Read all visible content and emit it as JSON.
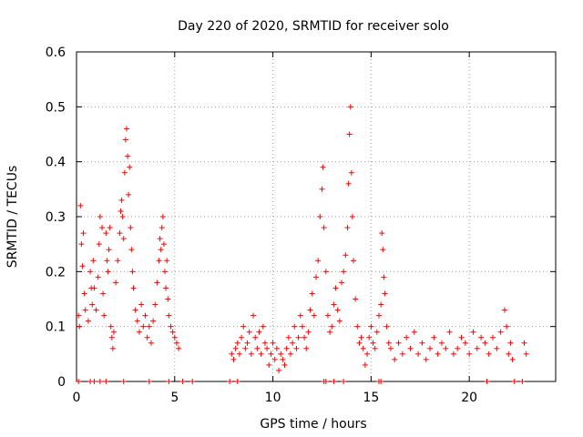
{
  "chart_data": {
    "type": "scatter",
    "title": "Day 220 of 2020, SRMTID for receiver solo",
    "xlabel": "GPS time / hours",
    "ylabel": "SRMTID / TECUs",
    "xlim": [
      0,
      24.4
    ],
    "ylim": [
      0,
      0.6
    ],
    "xticks": [
      0,
      5,
      10,
      15,
      20
    ],
    "xtick_labels": [
      "0",
      "5",
      "10",
      "15",
      "20"
    ],
    "yticks": [
      0,
      0.1,
      0.2,
      0.3,
      0.4,
      0.5,
      0.6
    ],
    "ytick_labels": [
      "0",
      "0.1",
      "0.2",
      "0.3",
      "0.4",
      "0.5",
      "0.6"
    ],
    "grid": true,
    "marker": "+",
    "color": "#ff0000",
    "series": [
      {
        "name": "SRMTID",
        "points": [
          [
            0.1,
            0.12
          ],
          [
            0.15,
            0.1
          ],
          [
            0.2,
            0.32
          ],
          [
            0.25,
            0.25
          ],
          [
            0.3,
            0.21
          ],
          [
            0.35,
            0.27
          ],
          [
            0.4,
            0.16
          ],
          [
            0.45,
            0.13
          ],
          [
            0.6,
            0.11
          ],
          [
            0.7,
            0.2
          ],
          [
            0.75,
            0.17
          ],
          [
            0.8,
            0.14
          ],
          [
            0.85,
            0.22
          ],
          [
            0.9,
            0.17
          ],
          [
            1.0,
            0.13
          ],
          [
            1.1,
            0.19
          ],
          [
            1.15,
            0.25
          ],
          [
            1.2,
            0.3
          ],
          [
            1.3,
            0.28
          ],
          [
            1.35,
            0.16
          ],
          [
            1.4,
            0.12
          ],
          [
            1.5,
            0.27
          ],
          [
            1.55,
            0.22
          ],
          [
            1.6,
            0.2
          ],
          [
            1.65,
            0.24
          ],
          [
            1.7,
            0.28
          ],
          [
            1.75,
            0.1
          ],
          [
            1.8,
            0.08
          ],
          [
            1.85,
            0.06
          ],
          [
            1.9,
            0.09
          ],
          [
            2.0,
            0.18
          ],
          [
            2.1,
            0.22
          ],
          [
            2.2,
            0.27
          ],
          [
            2.25,
            0.31
          ],
          [
            2.3,
            0.33
          ],
          [
            2.35,
            0.3
          ],
          [
            2.4,
            0.26
          ],
          [
            2.45,
            0.38
          ],
          [
            2.5,
            0.44
          ],
          [
            2.55,
            0.46
          ],
          [
            2.6,
            0.41
          ],
          [
            2.65,
            0.34
          ],
          [
            2.7,
            0.39
          ],
          [
            2.75,
            0.28
          ],
          [
            2.8,
            0.24
          ],
          [
            2.85,
            0.2
          ],
          [
            2.9,
            0.17
          ],
          [
            3.0,
            0.13
          ],
          [
            3.1,
            0.11
          ],
          [
            3.2,
            0.09
          ],
          [
            3.3,
            0.14
          ],
          [
            3.4,
            0.1
          ],
          [
            3.5,
            0.12
          ],
          [
            3.6,
            0.08
          ],
          [
            3.7,
            0.1
          ],
          [
            3.8,
            0.07
          ],
          [
            3.9,
            0.11
          ],
          [
            4.0,
            0.14
          ],
          [
            4.1,
            0.18
          ],
          [
            4.2,
            0.22
          ],
          [
            4.25,
            0.26
          ],
          [
            4.3,
            0.24
          ],
          [
            4.35,
            0.28
          ],
          [
            4.4,
            0.3
          ],
          [
            4.45,
            0.25
          ],
          [
            4.5,
            0.2
          ],
          [
            4.55,
            0.17
          ],
          [
            4.6,
            0.22
          ],
          [
            4.65,
            0.15
          ],
          [
            4.7,
            0.12
          ],
          [
            4.8,
            0.1
          ],
          [
            4.9,
            0.09
          ],
          [
            5.0,
            0.08
          ],
          [
            5.1,
            0.07
          ],
          [
            5.2,
            0.06
          ],
          [
            7.9,
            0.05
          ],
          [
            8.0,
            0.04
          ],
          [
            8.1,
            0.06
          ],
          [
            8.2,
            0.07
          ],
          [
            8.3,
            0.05
          ],
          [
            8.4,
            0.08
          ],
          [
            8.5,
            0.1
          ],
          [
            8.6,
            0.06
          ],
          [
            8.7,
            0.07
          ],
          [
            8.8,
            0.09
          ],
          [
            8.9,
            0.05
          ],
          [
            9.0,
            0.12
          ],
          [
            9.1,
            0.08
          ],
          [
            9.2,
            0.06
          ],
          [
            9.3,
            0.09
          ],
          [
            9.4,
            0.05
          ],
          [
            9.5,
            0.1
          ],
          [
            9.6,
            0.07
          ],
          [
            9.7,
            0.06
          ],
          [
            9.8,
            0.03
          ],
          [
            9.9,
            0.05
          ],
          [
            10.0,
            0.07
          ],
          [
            10.1,
            0.04
          ],
          [
            10.2,
            0.06
          ],
          [
            10.3,
            0.02
          ],
          [
            10.4,
            0.05
          ],
          [
            10.5,
            0.04
          ],
          [
            10.6,
            0.03
          ],
          [
            10.7,
            0.06
          ],
          [
            10.8,
            0.08
          ],
          [
            10.9,
            0.05
          ],
          [
            11.0,
            0.07
          ],
          [
            11.1,
            0.1
          ],
          [
            11.2,
            0.06
          ],
          [
            11.3,
            0.08
          ],
          [
            11.4,
            0.12
          ],
          [
            11.5,
            0.1
          ],
          [
            11.6,
            0.08
          ],
          [
            11.7,
            0.06
          ],
          [
            11.8,
            0.09
          ],
          [
            11.9,
            0.13
          ],
          [
            12.0,
            0.16
          ],
          [
            12.1,
            0.12
          ],
          [
            12.2,
            0.19
          ],
          [
            12.3,
            0.22
          ],
          [
            12.4,
            0.3
          ],
          [
            12.5,
            0.35
          ],
          [
            12.55,
            0.39
          ],
          [
            12.6,
            0.28
          ],
          [
            12.7,
            0.2
          ],
          [
            12.8,
            0.12
          ],
          [
            12.9,
            0.09
          ],
          [
            13.0,
            0.1
          ],
          [
            13.1,
            0.14
          ],
          [
            13.2,
            0.17
          ],
          [
            13.3,
            0.13
          ],
          [
            13.4,
            0.11
          ],
          [
            13.5,
            0.18
          ],
          [
            13.6,
            0.2
          ],
          [
            13.7,
            0.23
          ],
          [
            13.8,
            0.28
          ],
          [
            13.85,
            0.36
          ],
          [
            13.9,
            0.45
          ],
          [
            13.95,
            0.5
          ],
          [
            14.0,
            0.38
          ],
          [
            14.05,
            0.3
          ],
          [
            14.1,
            0.22
          ],
          [
            14.2,
            0.15
          ],
          [
            14.3,
            0.1
          ],
          [
            14.4,
            0.07
          ],
          [
            14.5,
            0.08
          ],
          [
            14.6,
            0.06
          ],
          [
            14.7,
            0.03
          ],
          [
            14.8,
            0.05
          ],
          [
            14.9,
            0.08
          ],
          [
            15.0,
            0.1
          ],
          [
            15.1,
            0.07
          ],
          [
            15.2,
            0.06
          ],
          [
            15.3,
            0.09
          ],
          [
            15.4,
            0.12
          ],
          [
            15.5,
            0.14
          ],
          [
            15.55,
            0.27
          ],
          [
            15.6,
            0.24
          ],
          [
            15.65,
            0.19
          ],
          [
            15.7,
            0.16
          ],
          [
            15.8,
            0.1
          ],
          [
            15.9,
            0.07
          ],
          [
            16.0,
            0.06
          ],
          [
            16.2,
            0.04
          ],
          [
            16.4,
            0.07
          ],
          [
            16.6,
            0.05
          ],
          [
            16.8,
            0.08
          ],
          [
            17.0,
            0.06
          ],
          [
            17.2,
            0.09
          ],
          [
            17.4,
            0.05
          ],
          [
            17.6,
            0.07
          ],
          [
            17.8,
            0.04
          ],
          [
            18.0,
            0.06
          ],
          [
            18.2,
            0.08
          ],
          [
            18.4,
            0.05
          ],
          [
            18.6,
            0.07
          ],
          [
            18.8,
            0.06
          ],
          [
            19.0,
            0.09
          ],
          [
            19.2,
            0.05
          ],
          [
            19.4,
            0.06
          ],
          [
            19.6,
            0.08
          ],
          [
            19.8,
            0.07
          ],
          [
            20.0,
            0.05
          ],
          [
            20.2,
            0.09
          ],
          [
            20.4,
            0.06
          ],
          [
            20.6,
            0.08
          ],
          [
            20.8,
            0.07
          ],
          [
            21.0,
            0.05
          ],
          [
            21.2,
            0.08
          ],
          [
            21.4,
            0.06
          ],
          [
            21.6,
            0.09
          ],
          [
            21.8,
            0.13
          ],
          [
            21.9,
            0.1
          ],
          [
            22.0,
            0.05
          ],
          [
            22.1,
            0.07
          ],
          [
            22.2,
            0.04
          ],
          [
            22.8,
            0.07
          ],
          [
            22.9,
            0.05
          ],
          [
            0.1,
            0
          ],
          [
            0.7,
            0
          ],
          [
            0.9,
            0
          ],
          [
            1.2,
            0
          ],
          [
            1.5,
            0
          ],
          [
            2.4,
            0
          ],
          [
            3.7,
            0
          ],
          [
            4.7,
            0
          ],
          [
            5.4,
            0
          ],
          [
            5.9,
            0
          ],
          [
            7.8,
            0
          ],
          [
            8.2,
            0
          ],
          [
            12.6,
            0
          ],
          [
            12.7,
            0
          ],
          [
            13.1,
            0
          ],
          [
            13.6,
            0
          ],
          [
            15.4,
            0
          ],
          [
            15.5,
            0
          ],
          [
            20.9,
            0
          ],
          [
            22.3,
            0
          ],
          [
            22.7,
            0
          ]
        ]
      }
    ]
  }
}
